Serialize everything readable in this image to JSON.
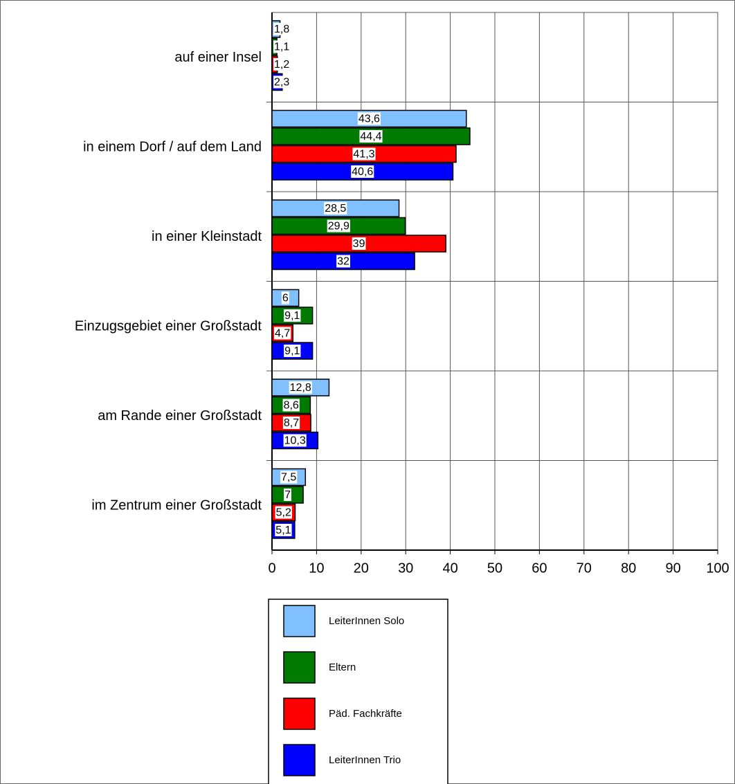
{
  "chart_data": {
    "type": "hbar",
    "categories": [
      "auf einer Insel",
      "in einem Dorf / auf dem Land",
      "in einer Kleinstadt",
      "Einzugsgebiet einer Großstadt",
      "am Rande einer Großstadt",
      "im Zentrum einer Großstadt"
    ],
    "series": [
      {
        "name": "LeiterInnen Solo",
        "color": "#80c0ff",
        "values": [
          1.8,
          43.6,
          28.5,
          6,
          12.8,
          7.5
        ],
        "value_labels": [
          "1,8",
          "43,6",
          "28,5",
          "6",
          "12,8",
          "7,5"
        ]
      },
      {
        "name": "Eltern",
        "color": "#007a00",
        "values": [
          1.1,
          44.4,
          29.9,
          9.1,
          8.6,
          7
        ],
        "value_labels": [
          "1,1",
          "44,4",
          "29,9",
          "9,1",
          "8,6",
          "7"
        ]
      },
      {
        "name": "Päd. Fachkräfte",
        "color": "#ff0000",
        "values": [
          1.2,
          41.3,
          39,
          4.7,
          8.7,
          5.2
        ],
        "value_labels": [
          "1,2",
          "41,3",
          "39",
          "4,7",
          "8,7",
          "5,2"
        ]
      },
      {
        "name": "LeiterInnen Trio",
        "color": "#0000ff",
        "values": [
          2.3,
          40.6,
          32,
          9.1,
          10.3,
          5.1
        ],
        "value_labels": [
          "2,3",
          "40,6",
          "32",
          "9,1",
          "10,3",
          "5,1"
        ]
      }
    ],
    "xlim": [
      0,
      100
    ],
    "xticks": [
      0,
      10,
      20,
      30,
      40,
      50,
      60,
      70,
      80,
      90,
      100
    ],
    "grid": true
  }
}
